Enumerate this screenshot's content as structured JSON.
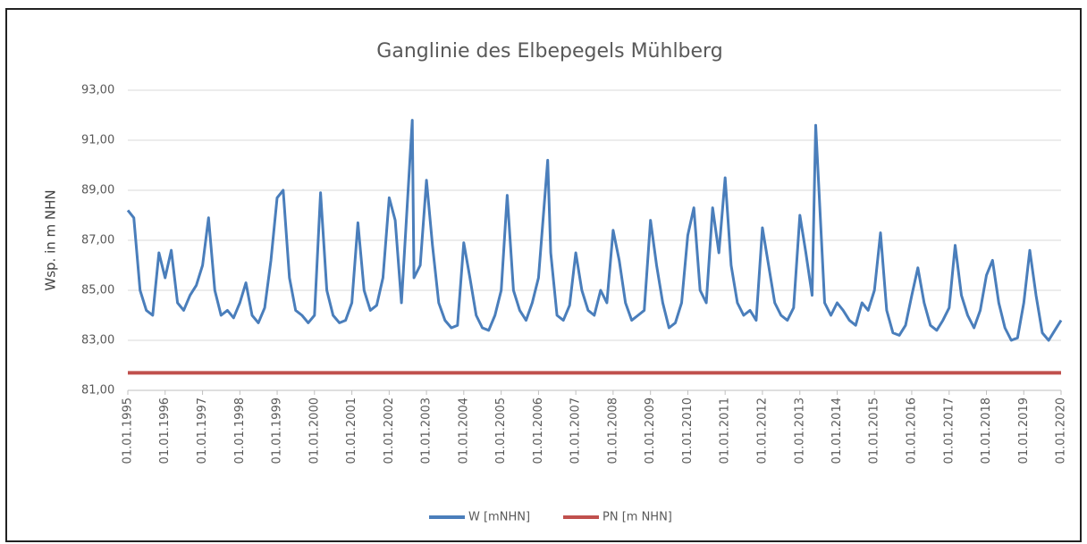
{
  "chart_data": {
    "type": "line",
    "title": "Ganglinie des Elbepegels Mühlberg",
    "y_label": "Wsp. in m NHN",
    "ylim": [
      81,
      93
    ],
    "yticks": [
      {
        "value": 81,
        "label": "81,00"
      },
      {
        "value": 83,
        "label": "83,00"
      },
      {
        "value": 85,
        "label": "85,00"
      },
      {
        "value": 87,
        "label": "87,00"
      },
      {
        "value": 89,
        "label": "89,00"
      },
      {
        "value": 91,
        "label": "91,00"
      },
      {
        "value": 93,
        "label": "93,00"
      }
    ],
    "xlim": [
      "01.01.1995",
      "01.01.2020"
    ],
    "xticks": [
      "01.01.1995",
      "01.01.1996",
      "01.01.1997",
      "01.01.1998",
      "01.01.1999",
      "01.01.2000",
      "01.01.2001",
      "01.01.2002",
      "01.01.2003",
      "01.01.2004",
      "01.01.2005",
      "01.01.2006",
      "01.01.2007",
      "01.01.2008",
      "01.01.2009",
      "01.01.2010",
      "01.01.2011",
      "01.01.2012",
      "01.01.2013",
      "01.01.2014",
      "01.01.2015",
      "01.01.2016",
      "01.01.2017",
      "01.01.2018",
      "01.01.2019",
      "01.01.2020"
    ],
    "grid": true,
    "legend": "bottom",
    "series": [
      {
        "name": "W [mNHN]",
        "color": "#4a7ebb",
        "x": [
          "01.01.1995",
          "01.03.1995",
          "01.05.1995",
          "01.07.1995",
          "01.09.1995",
          "01.11.1995",
          "01.01.1996",
          "01.03.1996",
          "01.05.1996",
          "01.07.1996",
          "01.09.1996",
          "01.11.1996",
          "01.01.1997",
          "01.03.1997",
          "01.05.1997",
          "01.07.1997",
          "01.09.1997",
          "01.11.1997",
          "01.01.1998",
          "01.03.1998",
          "01.05.1998",
          "01.07.1998",
          "01.09.1998",
          "01.11.1998",
          "01.01.1999",
          "01.03.1999",
          "01.05.1999",
          "01.07.1999",
          "01.09.1999",
          "01.11.1999",
          "01.01.2000",
          "01.03.2000",
          "01.05.2000",
          "01.07.2000",
          "01.09.2000",
          "01.11.2000",
          "01.01.2001",
          "01.03.2001",
          "01.05.2001",
          "01.07.2001",
          "01.09.2001",
          "01.11.2001",
          "01.01.2002",
          "01.03.2002",
          "01.05.2002",
          "15.08.2002",
          "01.09.2002",
          "01.11.2002",
          "01.01.2003",
          "01.03.2003",
          "01.05.2003",
          "01.07.2003",
          "01.09.2003",
          "01.11.2003",
          "01.01.2004",
          "01.03.2004",
          "01.05.2004",
          "01.07.2004",
          "01.09.2004",
          "01.11.2004",
          "01.01.2005",
          "01.03.2005",
          "01.05.2005",
          "01.07.2005",
          "01.09.2005",
          "01.11.2005",
          "01.01.2006",
          "01.04.2006",
          "01.05.2006",
          "01.07.2006",
          "01.09.2006",
          "01.11.2006",
          "01.01.2007",
          "01.03.2007",
          "01.05.2007",
          "01.07.2007",
          "01.09.2007",
          "01.11.2007",
          "01.01.2008",
          "01.03.2008",
          "01.05.2008",
          "01.07.2008",
          "01.09.2008",
          "01.11.2008",
          "01.01.2009",
          "01.03.2009",
          "01.05.2009",
          "01.07.2009",
          "01.09.2009",
          "01.11.2009",
          "01.01.2010",
          "01.03.2010",
          "01.05.2010",
          "01.07.2010",
          "01.09.2010",
          "01.11.2010",
          "01.01.2011",
          "01.03.2011",
          "01.05.2011",
          "01.07.2011",
          "01.09.2011",
          "01.11.2011",
          "01.01.2012",
          "01.03.2012",
          "01.05.2012",
          "01.07.2012",
          "01.09.2012",
          "01.11.2012",
          "01.01.2013",
          "01.03.2013",
          "01.05.2013",
          "05.06.2013",
          "01.09.2013",
          "01.11.2013",
          "01.01.2014",
          "01.03.2014",
          "01.05.2014",
          "01.07.2014",
          "01.09.2014",
          "01.11.2014",
          "01.01.2015",
          "01.03.2015",
          "01.05.2015",
          "01.07.2015",
          "01.09.2015",
          "01.11.2015",
          "01.01.2016",
          "01.03.2016",
          "01.05.2016",
          "01.07.2016",
          "01.09.2016",
          "01.11.2016",
          "01.01.2017",
          "01.03.2017",
          "01.05.2017",
          "01.07.2017",
          "01.09.2017",
          "01.11.2017",
          "01.01.2018",
          "01.03.2018",
          "01.05.2018",
          "01.07.2018",
          "01.09.2018",
          "01.11.2018",
          "01.01.2019",
          "01.03.2019",
          "01.05.2019",
          "01.07.2019",
          "01.09.2019",
          "01.11.2019",
          "01.01.2020"
        ],
        "values": [
          88.2,
          87.9,
          85.0,
          84.2,
          84.0,
          86.5,
          85.5,
          86.6,
          84.5,
          84.2,
          84.8,
          85.2,
          86.0,
          87.9,
          85.0,
          84.0,
          84.2,
          83.9,
          84.5,
          85.3,
          84.0,
          83.7,
          84.3,
          86.2,
          88.7,
          89.0,
          85.5,
          84.2,
          84.0,
          83.7,
          84.0,
          88.9,
          85.0,
          84.0,
          83.7,
          83.8,
          84.5,
          87.7,
          85.0,
          84.2,
          84.4,
          85.5,
          88.7,
          87.8,
          84.5,
          91.8,
          85.5,
          86.0,
          89.4,
          86.8,
          84.5,
          83.8,
          83.5,
          83.6,
          86.9,
          85.5,
          84.0,
          83.5,
          83.4,
          84.0,
          85.0,
          88.8,
          85.0,
          84.2,
          83.8,
          84.5,
          85.5,
          90.2,
          86.5,
          84.0,
          83.8,
          84.4,
          86.5,
          85.0,
          84.2,
          84.0,
          85.0,
          84.5,
          87.4,
          86.2,
          84.5,
          83.8,
          84.0,
          84.2,
          87.8,
          86.0,
          84.5,
          83.5,
          83.7,
          84.5,
          87.2,
          88.3,
          85.0,
          84.5,
          88.3,
          86.5,
          89.5,
          86.0,
          84.5,
          84.0,
          84.2,
          83.8,
          87.5,
          86.0,
          84.5,
          84.0,
          83.8,
          84.3,
          88.0,
          86.5,
          84.8,
          91.6,
          84.5,
          84.0,
          84.5,
          84.2,
          83.8,
          83.6,
          84.5,
          84.2,
          85.0,
          87.3,
          84.2,
          83.3,
          83.2,
          83.6,
          84.8,
          85.9,
          84.5,
          83.6,
          83.4,
          83.8,
          84.3,
          86.8,
          84.8,
          84.0,
          83.5,
          84.2,
          85.6,
          86.2,
          84.5,
          83.5,
          83.0,
          83.1,
          84.5,
          86.6,
          84.8,
          83.3,
          83.0,
          83.4,
          83.8
        ]
      },
      {
        "name": "PN [m NHN]",
        "color": "#c0504d",
        "x": [
          "01.01.1995",
          "01.01.2020"
        ],
        "values": [
          81.7,
          81.7
        ]
      }
    ]
  }
}
